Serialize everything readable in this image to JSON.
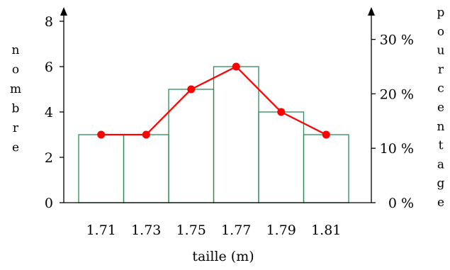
{
  "chart_data": {
    "type": "bar",
    "categories": [
      "1.71",
      "1.73",
      "1.75",
      "1.77",
      "1.79",
      "1.81"
    ],
    "series": [
      {
        "values": [
          3,
          3,
          5,
          6,
          4,
          3
        ]
      }
    ],
    "polygon_values": [
      3,
      3,
      5,
      6,
      4,
      3
    ],
    "xlabel": "taille (m)",
    "ylabel_left_letters": [
      "n",
      "o",
      "m",
      "b",
      "r",
      "e"
    ],
    "ylabel_right_letters": [
      "p",
      "o",
      "u",
      "r",
      "c",
      "e",
      "n",
      "t",
      "a",
      "g",
      "e"
    ],
    "y_left": {
      "min": 0,
      "max": 8,
      "ticks": [
        "0",
        "2",
        "4",
        "6",
        "8"
      ]
    },
    "y_right": {
      "ticks": [
        "0 %",
        "10 %",
        "20 %",
        "30 %"
      ]
    },
    "grid": false,
    "legend": "none",
    "colors": {
      "bars": "#2e8b57",
      "polygon": "#ff0000",
      "axes": "#000000"
    }
  }
}
